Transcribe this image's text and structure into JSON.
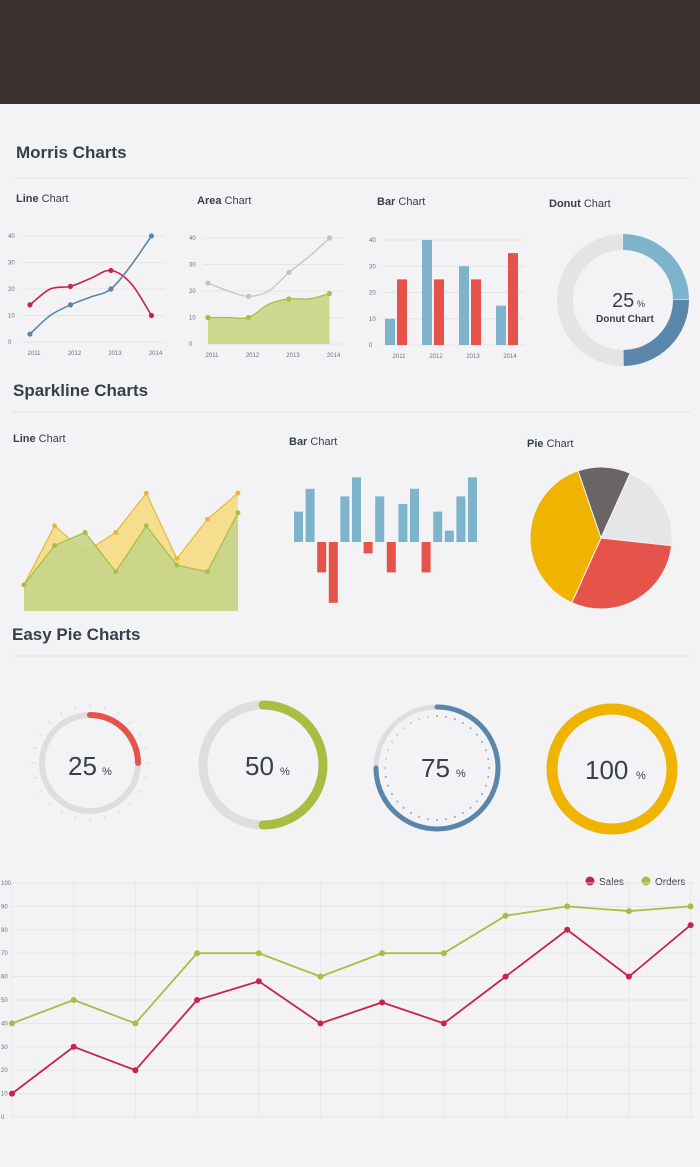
{
  "sections": {
    "morris": "Morris Charts",
    "sparkline": "Sparkline Charts",
    "easypie": "Easy Pie Charts"
  },
  "morris_titles": {
    "line": {
      "bold": "Line",
      "rest": " Chart"
    },
    "area": {
      "bold": "Area",
      "rest": " Chart"
    },
    "bar": {
      "bold": "Bar",
      "rest": " Chart"
    },
    "donut": {
      "bold": "Donut",
      "rest": " Chart"
    }
  },
  "spark_titles": {
    "line": {
      "bold": "Line",
      "rest": " Chart"
    },
    "bar": {
      "bold": "Bar",
      "rest": " Chart"
    },
    "pie": {
      "bold": "Pie",
      "rest": " Chart"
    }
  },
  "donut_center": {
    "value": "25",
    "unit": "%",
    "label": "Donut Chart"
  },
  "colors": {
    "red": "#c8234a",
    "blue": "#5b86ac",
    "green": "#a7be43",
    "gray": "#c8c8cc",
    "light_blue": "#7db4cb",
    "bar_red": "#e5534b",
    "yellow": "#f0b400",
    "dark_gray": "#6a6466",
    "pale_gray": "#e6e6e8",
    "text": "#37404a"
  },
  "chart_data": [
    {
      "id": "morris-line",
      "type": "line",
      "x": [
        "2011",
        "2012",
        "2013",
        "2014"
      ],
      "yticks": [
        "0",
        "10",
        "20",
        "30",
        "40"
      ],
      "ylim": [
        0,
        40
      ],
      "series": [
        {
          "x": [
            2010.9,
            2011.4,
            2011.9,
            2012.4,
            2012.9,
            2013.4,
            2013.9
          ],
          "values": [
            14,
            20,
            21,
            24,
            27,
            22,
            10
          ]
        },
        {
          "x": [
            2010.9,
            2011.4,
            2011.9,
            2012.4,
            2012.9,
            2013.4,
            2013.9
          ],
          "values": [
            3,
            10,
            14,
            17,
            20,
            29,
            40
          ]
        }
      ]
    },
    {
      "id": "morris-area",
      "type": "area",
      "x": [
        "2011",
        "2012",
        "2013",
        "2014"
      ],
      "yticks": [
        "0",
        "10",
        "20",
        "30",
        "40"
      ],
      "ylim": [
        0,
        40
      ],
      "series": [
        {
          "x": [
            2010.9,
            2011.4,
            2011.9,
            2012.4,
            2012.9,
            2013.4,
            2013.9
          ],
          "values": [
            10,
            10,
            10,
            15,
            17,
            17,
            19
          ]
        },
        {
          "x": [
            2010.9,
            2011.4,
            2011.9,
            2012.4,
            2012.9,
            2013.4,
            2013.9
          ],
          "values": [
            23,
            20,
            18,
            20,
            27,
            33,
            40
          ]
        }
      ]
    },
    {
      "id": "morris-bar",
      "type": "bar",
      "categories": [
        "2011",
        "2012",
        "2013",
        "2014"
      ],
      "yticks": [
        "0",
        "10",
        "20",
        "30",
        "40"
      ],
      "ylim": [
        0,
        40
      ],
      "series": [
        {
          "values": [
            10,
            40,
            30,
            15
          ]
        },
        {
          "values": [
            25,
            25,
            25,
            35
          ]
        }
      ]
    },
    {
      "id": "morris-donut",
      "type": "pie",
      "values": [
        50,
        25,
        25
      ]
    },
    {
      "id": "spark-line",
      "type": "area",
      "x": [
        1,
        2,
        3,
        4,
        5,
        6,
        7,
        8
      ],
      "series": [
        {
          "values": [
            4,
            13,
            9,
            12,
            18,
            8,
            14,
            18
          ]
        },
        {
          "values": [
            4,
            10,
            12,
            6,
            13,
            7,
            6,
            15
          ]
        }
      ]
    },
    {
      "id": "spark-bar",
      "type": "bar",
      "values": [
        8,
        14,
        -8,
        -16,
        12,
        17,
        -3,
        12,
        -8,
        10,
        14,
        -8,
        8,
        3,
        12,
        17
      ]
    },
    {
      "id": "spark-pie",
      "type": "pie",
      "values": [
        38,
        30,
        20,
        12
      ]
    },
    {
      "id": "easy-pie",
      "type": "pie",
      "gauges": [
        {
          "value": 25,
          "label": "25",
          "unit": "%"
        },
        {
          "value": 50,
          "label": "50",
          "unit": "%"
        },
        {
          "value": 75,
          "label": "75",
          "unit": "%"
        },
        {
          "value": 100,
          "label": "100",
          "unit": "%"
        }
      ]
    },
    {
      "id": "sales-orders",
      "type": "line",
      "yticks": [
        "0",
        "10",
        "20",
        "30",
        "40",
        "50",
        "60",
        "70",
        "80",
        "90",
        "100"
      ],
      "ylim": [
        0,
        100
      ],
      "x": [
        1,
        2,
        3,
        4,
        5,
        6,
        7,
        8,
        9,
        10,
        11,
        12
      ],
      "legend_position": "top-right",
      "series": [
        {
          "name": "Sales",
          "values": [
            10,
            30,
            20,
            50,
            58,
            40,
            49,
            40,
            60,
            80,
            60,
            82
          ]
        },
        {
          "name": "Orders",
          "values": [
            40,
            50,
            40,
            70,
            70,
            60,
            70,
            70,
            86,
            90,
            88,
            90
          ]
        }
      ]
    }
  ]
}
